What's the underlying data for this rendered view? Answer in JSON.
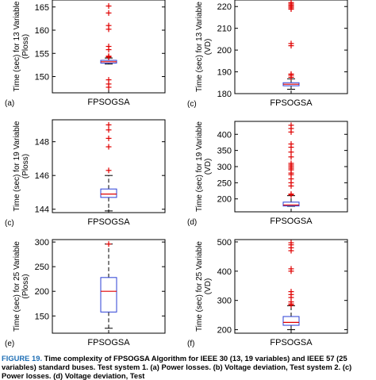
{
  "caption": {
    "label": "FIGURE 19.",
    "text": "  Time complexity of FPSOGSA Algorithm for IEEE 30 (13, 19 variables) and IEEE 57 (25 variables) standard buses. Test system 1. (a) Power losses. (b) Voltage deviation, Test system 2. (c) Power losses. (d) Voltage deviation, Test"
  },
  "colors": {
    "box": "#2b3fd6",
    "median": "#e00000",
    "outlier": "#e00000",
    "whisker": "#000000",
    "frame": "#000000"
  },
  "chart_data": [
    {
      "type": "box",
      "panel_label": "(a)",
      "category": "FPSOGSA",
      "ylabel": [
        "Time (sec) for 13 Variable",
        "(Ploss)"
      ],
      "ylim": [
        146.5,
        166.5
      ],
      "yticks": [
        150,
        155,
        160,
        165
      ],
      "box": {
        "min": 152.7,
        "q1": 152.9,
        "median": 153.2,
        "q3": 153.5,
        "max": 154.0
      },
      "outliers": [
        165.2,
        163.7,
        161.0,
        160.2,
        156.5,
        155.8,
        154.4,
        154.3,
        154.2,
        149.3,
        148.4,
        147.7
      ]
    },
    {
      "type": "box",
      "panel_label": "(c)",
      "category": "FPSOGSA",
      "ylabel": [
        "Time (sec) for 13 Variable",
        "(VD)"
      ],
      "ylim": [
        180,
        223
      ],
      "yticks": [
        180,
        190,
        200,
        210,
        220
      ],
      "box": {
        "min": 182.0,
        "q1": 183.6,
        "median": 184.3,
        "q3": 185.0,
        "max": 186.8
      },
      "outliers": [
        221.8,
        221.2,
        220.6,
        220.0,
        219.4,
        218.8,
        203.0,
        202.0,
        189.0,
        188.4,
        187.5
      ]
    },
    {
      "type": "box",
      "panel_label": "(c)",
      "category": "FPSOGSA",
      "ylabel": [
        "Time (sec) for 19 Variable",
        "(Ploss)"
      ],
      "ylim": [
        143.8,
        149.3
      ],
      "yticks": [
        144,
        146,
        148
      ],
      "box": {
        "min": 143.9,
        "q1": 144.7,
        "median": 144.9,
        "q3": 145.2,
        "max": 146.0
      },
      "outliers": [
        149.0,
        148.7,
        148.2,
        147.7,
        146.3
      ]
    },
    {
      "type": "box",
      "panel_label": "(d)",
      "category": "FPSOGSA",
      "ylabel": [
        "Time (sec) for 19 Variable",
        "(VD)"
      ],
      "ylim": [
        160,
        440
      ],
      "yticks": [
        200,
        250,
        300,
        350,
        400
      ],
      "box": {
        "min": 177,
        "q1": 178,
        "median": 181,
        "q3": 190,
        "max": 210
      },
      "outliers": [
        428,
        418,
        407,
        370,
        360,
        345,
        330,
        310,
        305,
        300,
        295,
        290,
        280,
        275,
        262,
        250,
        240,
        215,
        212
      ]
    },
    {
      "type": "box",
      "panel_label": "(e)",
      "category": "FPSOGSA",
      "ylabel": [
        "Time (sec) for 25 Variable",
        "(Ploss)"
      ],
      "ylim": [
        115,
        305
      ],
      "yticks": [
        150,
        200,
        250,
        300
      ],
      "box": {
        "min": 125,
        "q1": 158,
        "median": 200,
        "q3": 228,
        "max": 296
      },
      "outliers": [
        296
      ]
    },
    {
      "type": "box",
      "panel_label": "(f)",
      "category": "FPSOGSA",
      "ylabel": [
        "Time (sec) for 25 Variable",
        "(VD)"
      ],
      "ylim": [
        188,
        508
      ],
      "yticks": [
        200,
        300,
        400,
        500
      ],
      "box": {
        "min": 200,
        "q1": 215,
        "median": 225,
        "q3": 245,
        "max": 282
      },
      "outliers": [
        497,
        490,
        480,
        470,
        408,
        400,
        330,
        320,
        310,
        295,
        288,
        284
      ]
    }
  ]
}
